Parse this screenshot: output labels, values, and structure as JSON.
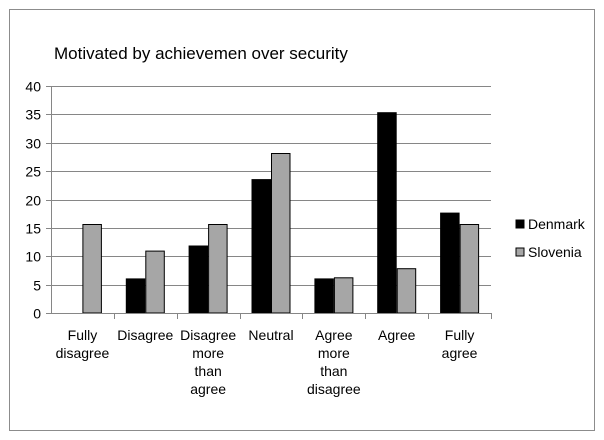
{
  "chart_data": {
    "type": "bar",
    "title": "Motivated by achievemen over security",
    "xlabel": "",
    "ylabel": "",
    "ylim": [
      0,
      40
    ],
    "yticks": [
      0,
      5,
      10,
      15,
      20,
      25,
      30,
      35,
      40
    ],
    "grid": true,
    "legend_position": "right",
    "categories": [
      [
        "Fully",
        "disagree"
      ],
      [
        "Disagree"
      ],
      [
        "Disagree",
        "more",
        "than",
        "agree"
      ],
      [
        "Neutral"
      ],
      [
        "Agree",
        "more",
        "than",
        "disagree"
      ],
      [
        "Agree"
      ],
      [
        "Fully",
        "agree"
      ]
    ],
    "series": [
      {
        "name": "Denmark",
        "color": "#000000",
        "values": [
          0,
          6,
          11.8,
          23.5,
          6,
          35.3,
          17.6
        ]
      },
      {
        "name": "Slovenia",
        "color": "#a6a6a6",
        "values": [
          15.6,
          10.9,
          15.6,
          28.1,
          6.2,
          7.8,
          15.6
        ]
      }
    ]
  }
}
